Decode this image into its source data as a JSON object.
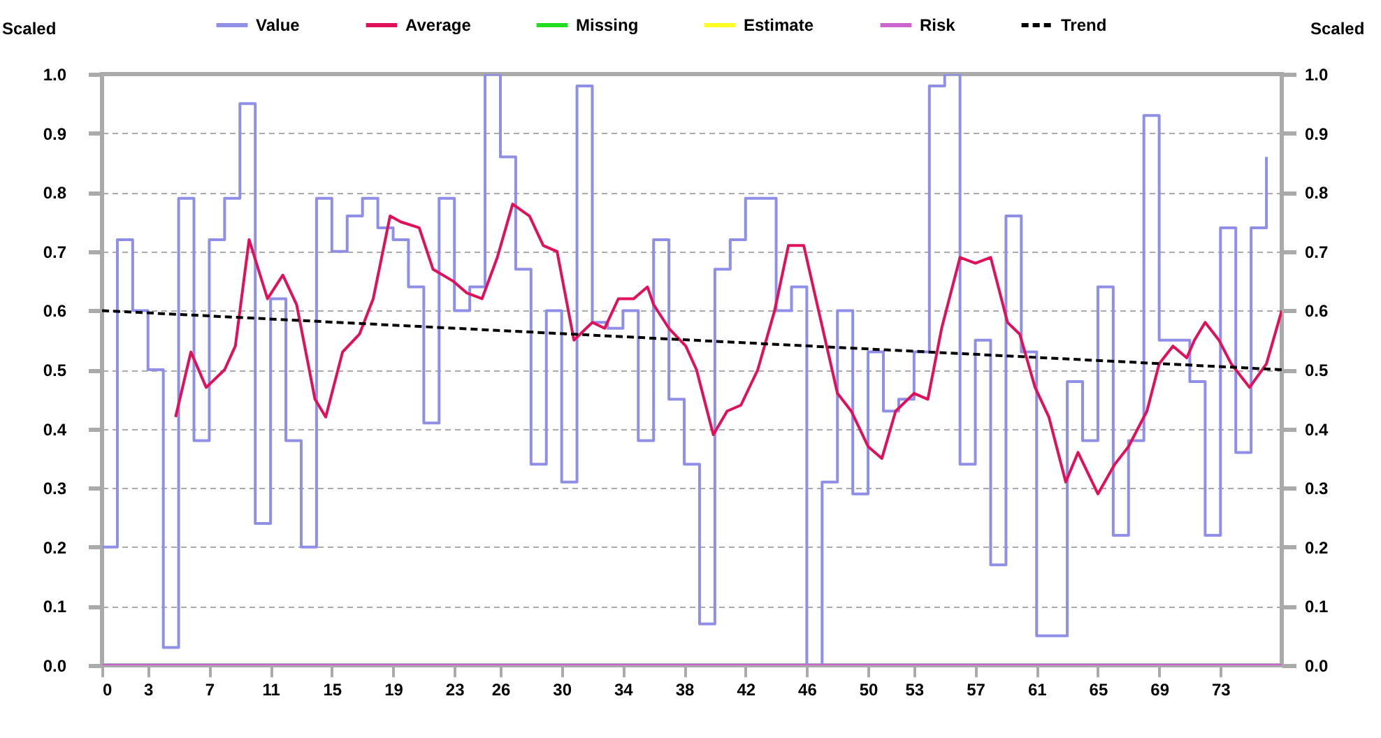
{
  "chart_data": {
    "type": "step",
    "xlim": [
      0,
      77
    ],
    "xticks": [
      0,
      3,
      7,
      11,
      15,
      19,
      23,
      26,
      30,
      34,
      38,
      42,
      46,
      50,
      53,
      57,
      61,
      65,
      69,
      73
    ],
    "ylabel": "Scaled",
    "y2label": "Scaled",
    "ylim": [
      0,
      1
    ],
    "yticks": [
      {
        "value": 0,
        "label": "0.0"
      },
      0.1,
      0.2,
      0.3,
      0.4,
      0.5,
      0.6,
      0.7,
      0.8,
      0.9,
      {
        "value": 1,
        "label": "1.0"
      }
    ],
    "y2lim": [
      0,
      1
    ],
    "y2ticks": [
      {
        "value": 0,
        "label": "0.0"
      },
      0.1,
      0.2,
      0.3,
      0.4,
      0.5,
      0.6,
      0.7,
      0.8,
      0.9,
      {
        "value": 1,
        "label": "1.0"
      }
    ],
    "grid": "y",
    "legend": "top",
    "series": [
      {
        "name": "Value",
        "color": "#8f8fe8",
        "x": [
          0,
          1,
          2,
          3,
          4,
          5,
          6,
          7,
          8,
          9,
          10,
          11,
          12,
          13,
          14,
          15,
          16,
          17,
          18,
          19,
          20,
          21,
          22,
          23,
          24,
          25,
          26,
          27,
          28,
          29,
          30,
          31,
          32,
          33,
          34,
          35,
          36,
          37,
          38,
          39,
          40,
          41,
          42,
          43,
          44,
          45,
          46,
          47,
          48,
          49,
          50,
          51,
          52,
          53,
          54,
          55,
          56,
          57,
          58,
          59,
          60,
          61,
          62,
          63,
          64,
          65,
          66,
          67,
          68,
          69,
          70,
          71,
          72,
          73,
          74,
          75,
          76
        ],
        "values": [
          0.2,
          0.72,
          0.6,
          0.5,
          0.03,
          0.79,
          0.38,
          0.72,
          0.79,
          0.95,
          0.24,
          0.62,
          0.38,
          0.2,
          0.79,
          0.7,
          0.76,
          0.79,
          0.74,
          0.72,
          0.64,
          0.41,
          0.79,
          0.6,
          0.64,
          1.0,
          0.86,
          0.67,
          0.34,
          0.6,
          0.31,
          0.98,
          0.58,
          0.57,
          0.6,
          0.38,
          0.72,
          0.45,
          0.34,
          0.07,
          0.67,
          0.72,
          0.79,
          0.79,
          0.6,
          0.64,
          0,
          0.31,
          0.6,
          0.29,
          0.53,
          0.43,
          0.45,
          0.53,
          0.98,
          1.0,
          0.34,
          0.55,
          0.17,
          0.76,
          0.53,
          0.05,
          0.05,
          0.48,
          0.38,
          0.64,
          0.22,
          0.38,
          0.93,
          0.55,
          0.55,
          0.48,
          0.22,
          0.74,
          0.36,
          0.74,
          0.86
        ]
      },
      {
        "name": "Average",
        "type": "line",
        "color": "#e0105a",
        "x": [
          4.8,
          5.8,
          6.8,
          8.0,
          8.7,
          9.6,
          10.8,
          11.8,
          12.7,
          13.9,
          14.6,
          15.7,
          16.8,
          17.7,
          18.8,
          19.5,
          20.7,
          21.6,
          22.9,
          23.8,
          24.8,
          25.8,
          26.8,
          27.9,
          28.8,
          29.7,
          30.8,
          32.0,
          32.8,
          33.7,
          34.7,
          35.6,
          36.0,
          37.0,
          38.1,
          38.8,
          39.9,
          40.8,
          41.7,
          42.8,
          43.9,
          44.8,
          45.8,
          48.0,
          48.9,
          50.0,
          50.9,
          51.8,
          53.0,
          53.9,
          54.8,
          56.0,
          57.0,
          58.0,
          59.1,
          59.9,
          60.9,
          61.8,
          62.9,
          63.7,
          65.0,
          66.1,
          67.0,
          68.2,
          69.0,
          69.9,
          70.8,
          71.3,
          72.0,
          72.9,
          73.7,
          74.9,
          76.0,
          77
        ],
        "values": [
          0.42,
          0.53,
          0.47,
          0.5,
          0.54,
          0.72,
          0.62,
          0.66,
          0.61,
          0.45,
          0.42,
          0.53,
          0.56,
          0.62,
          0.76,
          0.75,
          0.74,
          0.67,
          0.65,
          0.63,
          0.62,
          0.69,
          0.78,
          0.76,
          0.71,
          0.7,
          0.55,
          0.58,
          0.57,
          0.62,
          0.62,
          0.64,
          0.61,
          0.57,
          0.54,
          0.5,
          0.39,
          0.43,
          0.44,
          0.5,
          0.6,
          0.71,
          0.71,
          0.46,
          0.43,
          0.37,
          0.35,
          0.43,
          0.46,
          0.45,
          0.57,
          0.69,
          0.68,
          0.69,
          0.58,
          0.56,
          0.47,
          0.42,
          0.31,
          0.36,
          0.29,
          0.34,
          0.37,
          0.43,
          0.51,
          0.54,
          0.52,
          0.55,
          0.58,
          0.55,
          0.51,
          0.47,
          0.51,
          0.6
        ]
      },
      {
        "name": "Missing",
        "type": "line",
        "color": "#22dd22"
      },
      {
        "name": "Estimate",
        "type": "line",
        "color": "#ffff22"
      },
      {
        "name": "Risk",
        "type": "line",
        "color": "#cc66cc",
        "x": [
          0,
          77
        ],
        "values": [
          0,
          0
        ]
      },
      {
        "name": "Trend",
        "type": "line",
        "color": "#000000",
        "line_style": "dashed",
        "x": [
          0,
          77
        ],
        "values": [
          0.6,
          0.5
        ]
      }
    ]
  }
}
